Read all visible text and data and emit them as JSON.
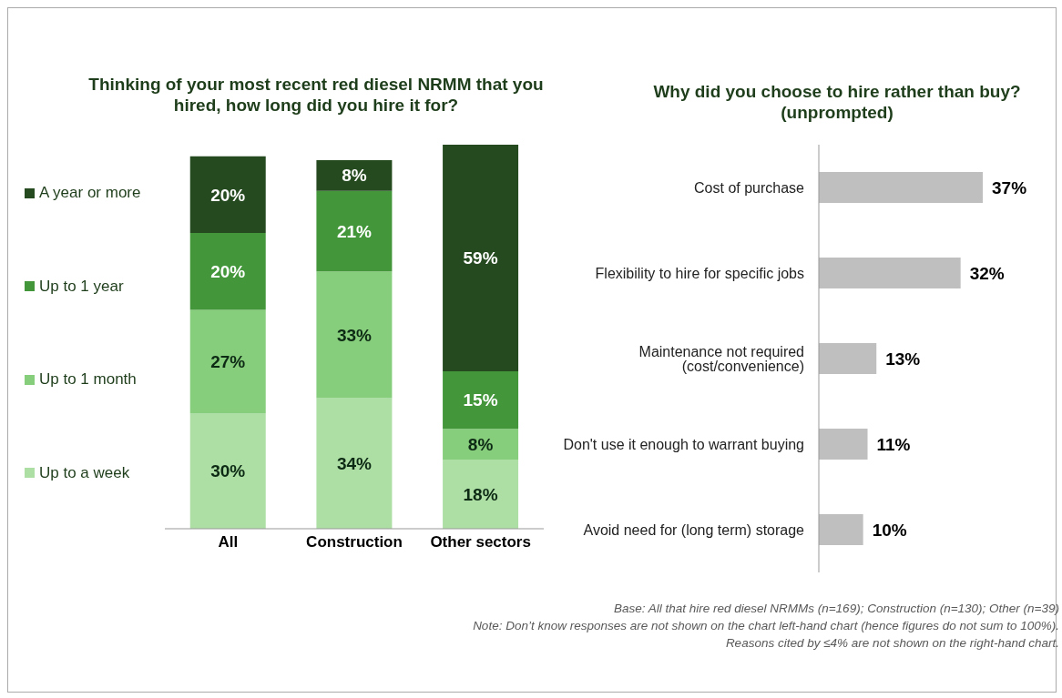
{
  "chart_data": [
    {
      "type": "bar",
      "title": "Thinking of your most recent red diesel NRMM that you hired, how long did you hire it for?",
      "categories": [
        "All",
        "Construction",
        "Other sectors"
      ],
      "stacked": true,
      "legend": "left",
      "series": [
        {
          "name": "Up to a week",
          "color": "#addfa5",
          "values": [
            30,
            34,
            18
          ],
          "value_labels": [
            "30%",
            "34%",
            "18%"
          ]
        },
        {
          "name": "Up to 1 month",
          "color": "#86cd7c",
          "values": [
            27,
            33,
            8
          ],
          "value_labels": [
            "27%",
            "33%",
            "8%"
          ]
        },
        {
          "name": "Up to 1 year",
          "color": "#43963a",
          "values": [
            20,
            21,
            15
          ],
          "value_labels": [
            "20%",
            "21%",
            "15%"
          ]
        },
        {
          "name": "A year or more",
          "color": "#254a1f",
          "values": [
            20,
            8,
            59
          ],
          "value_labels": [
            "20%",
            "8%",
            "59%"
          ]
        }
      ]
    },
    {
      "type": "bar",
      "orientation": "horizontal",
      "title": "Why did you choose to hire rather than buy? (unprompted)",
      "categories": [
        "Cost of purchase",
        "Flexibility to hire for specific jobs",
        "Maintenance not required (cost/convenience)",
        "Don't use it enough to warrant buying",
        "Avoid need for (long term) storage"
      ],
      "series": [
        {
          "color": "#bfbfbf",
          "values": [
            37,
            32,
            13,
            11,
            10
          ],
          "value_labels": [
            "37%",
            "32%",
            "13%",
            "11%",
            "10%"
          ]
        }
      ],
      "annotations": [
        "Base: All that hire red diesel NRMMs (n=169); Construction (n=130); Other (n=39)",
        "Note: Don’t know responses are not shown on the chart left-hand chart (hence figures do not sum to 100%).",
        "Reasons cited by ≤4% are not shown on the right-hand chart."
      ]
    }
  ]
}
